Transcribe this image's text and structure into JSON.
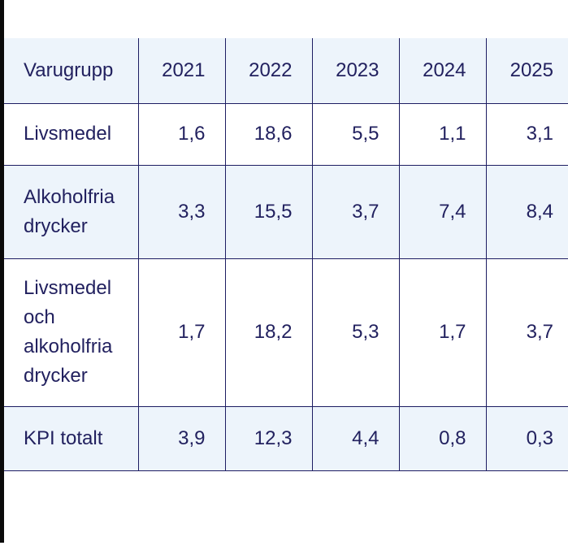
{
  "colors": {
    "stripe_background": "#edf4fb",
    "border": "#1d1d62",
    "text": "#22215f",
    "left_bar": "#0a0a0a"
  },
  "chart_data": {
    "type": "table",
    "columns": [
      "Varugrupp",
      "2021",
      "2022",
      "2023",
      "2024",
      "2025"
    ],
    "rows": [
      {
        "label": "Livsmedel",
        "values": [
          "1,6",
          "18,6",
          "5,5",
          "1,1",
          "3,1"
        ]
      },
      {
        "label": "Alkoholfria drycker",
        "values": [
          "3,3",
          "15,5",
          "3,7",
          "7,4",
          "8,4"
        ]
      },
      {
        "label": "Livsmedel och alkoholfria drycker",
        "values": [
          "1,7",
          "18,2",
          "5,3",
          "1,7",
          "3,7"
        ]
      },
      {
        "label": "KPI totalt",
        "values": [
          "3,9",
          "12,3",
          "4,4",
          "0,8",
          "0,3"
        ]
      }
    ]
  }
}
